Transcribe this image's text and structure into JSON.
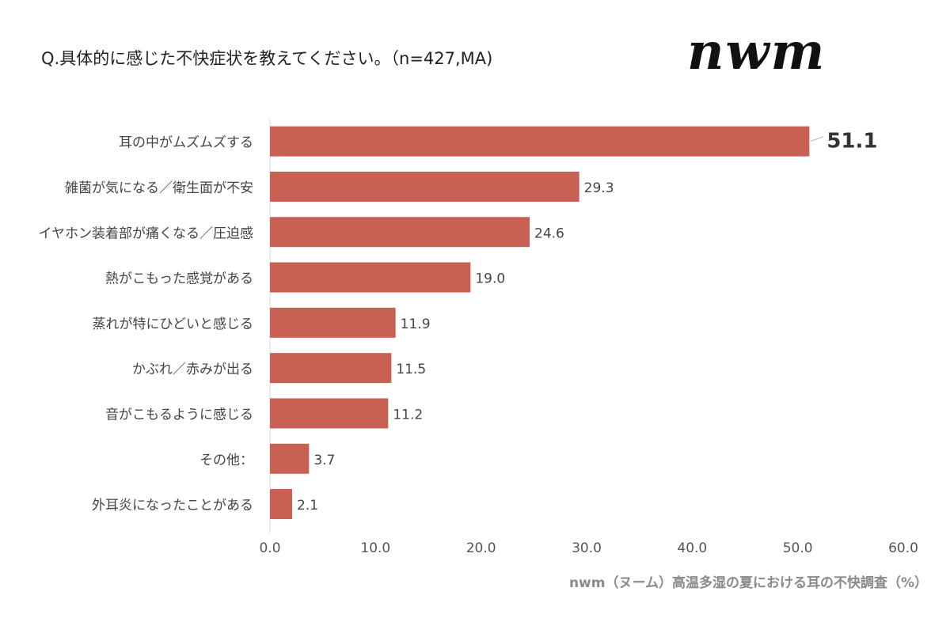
{
  "question": "Q.具体的に感じた不快症状を教えてください。（n=427,MA)",
  "logo": "nwm",
  "footer": "nwm（ヌーム）高温多湿の夏における耳の不快調査（%）",
  "colors": {
    "bar": "#c96054",
    "axis": "#d9d9d9",
    "label": "#333333"
  },
  "chart_data": {
    "type": "bar",
    "orientation": "horizontal",
    "categories": [
      "耳の中がムズムズする",
      "雑菌が気になる／衛生面が不安",
      "イヤホン装着部が痛くなる／圧迫感",
      "熱がこもった感覚がある",
      "蒸れが特にひどいと感じる",
      "かぶれ／赤みが出る",
      "音がこもるように感じる",
      "その他：",
      "外耳炎になったことがある"
    ],
    "values": [
      51.1,
      29.3,
      24.6,
      19.0,
      11.9,
      11.5,
      11.2,
      3.7,
      2.1
    ],
    "value_labels": [
      "51.1",
      "29.3",
      "24.6",
      "19.0",
      "11.9",
      "11.5",
      "11.2",
      "3.7",
      "2.1"
    ],
    "xlim": [
      0,
      60
    ],
    "xticks": [
      "0.0",
      "10.0",
      "20.0",
      "30.0",
      "40.0",
      "50.0",
      "60.0"
    ],
    "grid": false,
    "legend": "none"
  }
}
